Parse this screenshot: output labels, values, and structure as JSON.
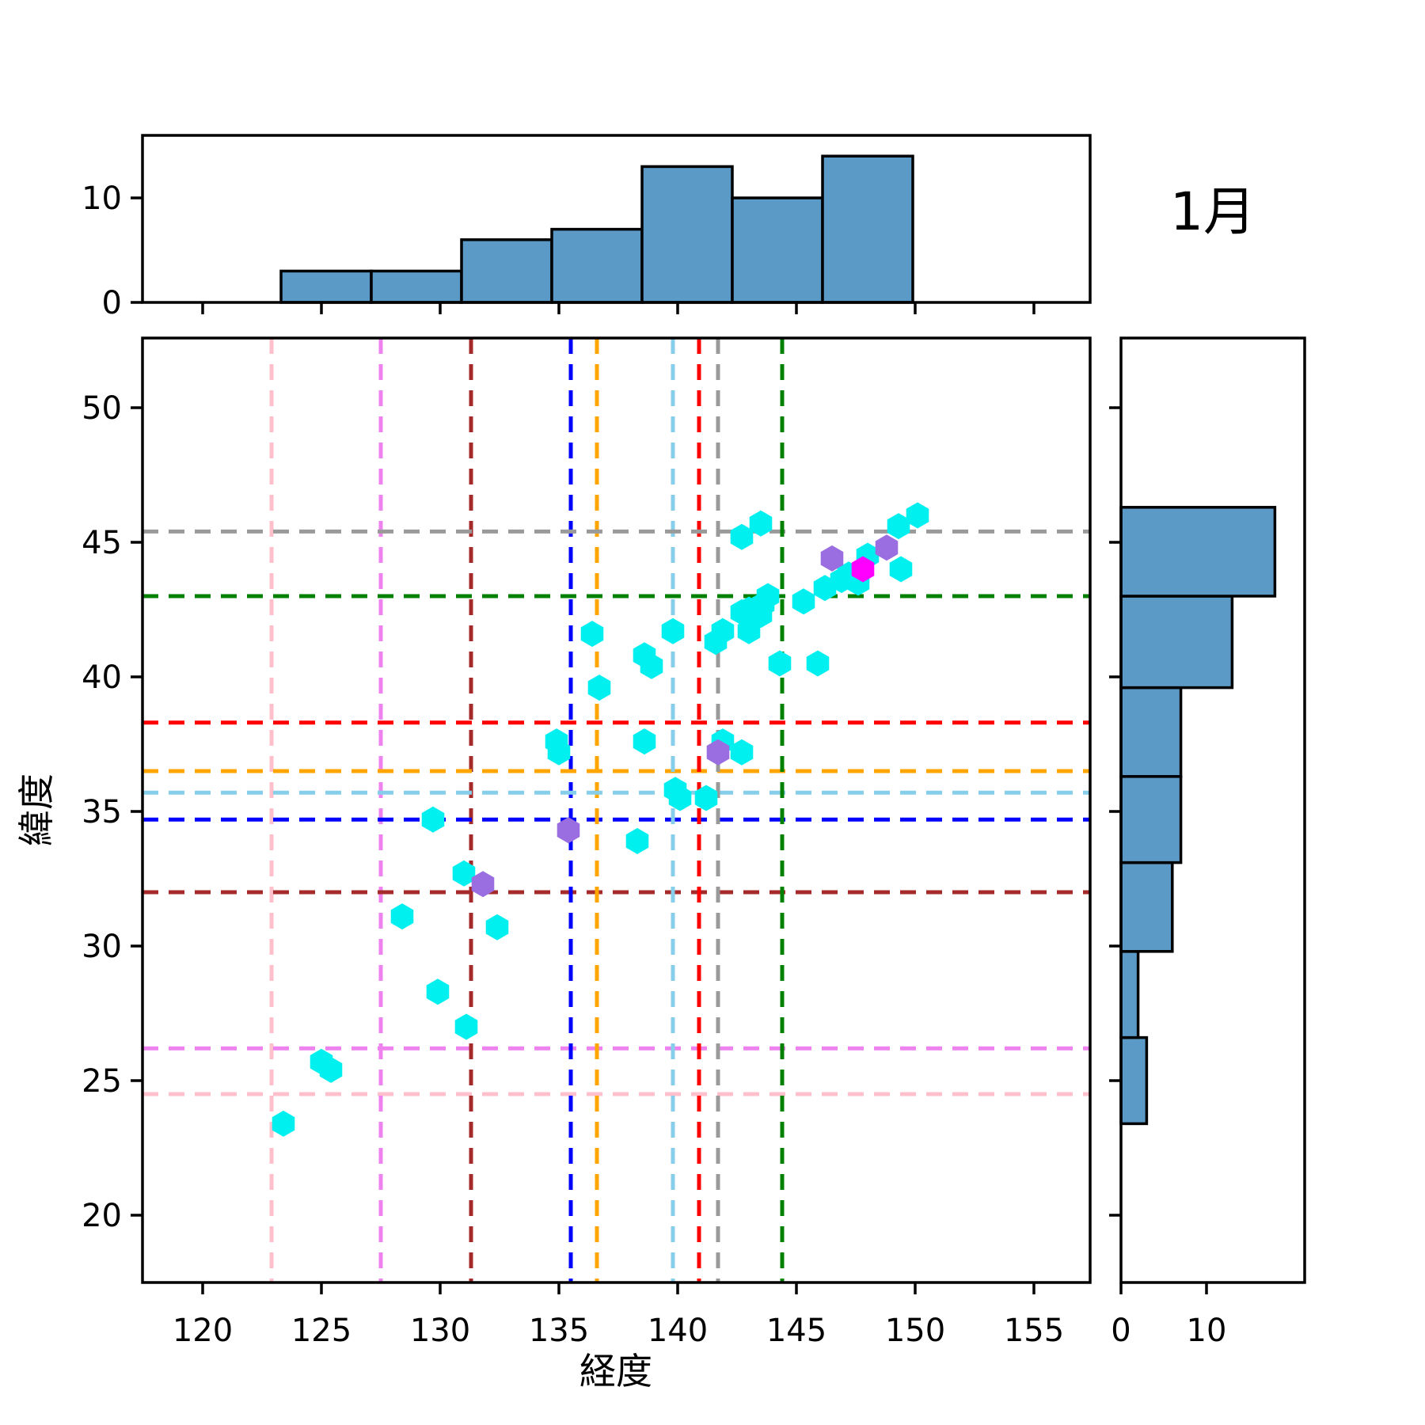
{
  "chart_data": {
    "type": "scatter",
    "title": "1月",
    "xlabel": "経度",
    "ylabel": "緯度",
    "xlim": [
      117.5,
      157.4
    ],
    "ylim": [
      17.5,
      52.6
    ],
    "grid": false,
    "xticks": [
      120,
      125,
      130,
      135,
      140,
      145,
      150,
      155
    ],
    "yticks": [
      20,
      25,
      30,
      35,
      40,
      45,
      50
    ],
    "marginal_count_ticks": [
      0,
      10
    ],
    "colors": {
      "histogram_fill": "#5b9ac7",
      "histogram_edge": "#000000",
      "cyan_points": "#00efef",
      "purple_points": "#9a6de1",
      "magenta_points": "#ff00ff"
    },
    "series": [
      {
        "name": "cyan-hexagons",
        "marker": "hexagon",
        "color": "#00efef",
        "points": [
          [
            123.4,
            23.4
          ],
          [
            125.0,
            25.7
          ],
          [
            125.4,
            25.4
          ],
          [
            128.4,
            31.1
          ],
          [
            129.7,
            34.7
          ],
          [
            129.9,
            28.3
          ],
          [
            131.0,
            32.7
          ],
          [
            131.1,
            27.0
          ],
          [
            132.4,
            30.7
          ],
          [
            134.9,
            37.6
          ],
          [
            135.0,
            37.2
          ],
          [
            136.4,
            41.6
          ],
          [
            136.7,
            39.6
          ],
          [
            138.3,
            33.9
          ],
          [
            138.6,
            40.8
          ],
          [
            138.6,
            37.6
          ],
          [
            138.9,
            40.4
          ],
          [
            139.8,
            41.7
          ],
          [
            139.9,
            35.8
          ],
          [
            140.1,
            35.5
          ],
          [
            141.2,
            35.5
          ],
          [
            141.6,
            41.3
          ],
          [
            141.9,
            37.6
          ],
          [
            141.9,
            41.7
          ],
          [
            142.7,
            37.2
          ],
          [
            142.7,
            42.4
          ],
          [
            142.7,
            45.2
          ],
          [
            143.0,
            41.7
          ],
          [
            143.0,
            42.5
          ],
          [
            143.5,
            42.3
          ],
          [
            143.5,
            45.7
          ],
          [
            143.6,
            42.7
          ],
          [
            143.8,
            43.0
          ],
          [
            144.3,
            40.5
          ],
          [
            145.3,
            42.8
          ],
          [
            145.9,
            40.5
          ],
          [
            146.2,
            43.3
          ],
          [
            146.9,
            43.6
          ],
          [
            147.2,
            43.8
          ],
          [
            147.6,
            43.5
          ],
          [
            148.0,
            44.5
          ],
          [
            149.3,
            45.6
          ],
          [
            149.4,
            44.0
          ],
          [
            150.1,
            46.0
          ]
        ]
      },
      {
        "name": "purple-hexagons",
        "marker": "hexagon",
        "color": "#9a6de1",
        "points": [
          [
            131.8,
            32.3
          ],
          [
            135.4,
            34.3
          ],
          [
            141.7,
            37.2
          ],
          [
            146.5,
            44.4
          ],
          [
            148.8,
            44.8
          ]
        ]
      },
      {
        "name": "magenta-hexagons",
        "marker": "hexagon",
        "color": "#ff00ff",
        "points": [
          [
            147.8,
            44.0
          ]
        ]
      }
    ],
    "crosshairs": [
      {
        "name": "pink",
        "color": "#ffc0cb",
        "lon": 122.9,
        "lat": 24.5
      },
      {
        "name": "violet",
        "color": "#ee82ee",
        "lon": 127.5,
        "lat": 26.2
      },
      {
        "name": "darkred",
        "color": "#a52a2a",
        "lon": 131.3,
        "lat": 32.0
      },
      {
        "name": "blue",
        "color": "#0000ff",
        "lon": 135.5,
        "lat": 34.7
      },
      {
        "name": "orange",
        "color": "#ffa500",
        "lon": 136.6,
        "lat": 36.5
      },
      {
        "name": "skyblue",
        "color": "#87ceeb",
        "lon": 139.8,
        "lat": 35.7
      },
      {
        "name": "red",
        "color": "#ff0000",
        "lon": 140.9,
        "lat": 38.3
      },
      {
        "name": "gray",
        "color": "#9a9a9a",
        "lon": 141.7,
        "lat": 45.4
      },
      {
        "name": "green",
        "color": "#008000",
        "lon": 144.4,
        "lat": 43.0
      }
    ],
    "top_histogram": {
      "axis": "longitude",
      "bin_edges": [
        123.3,
        127.1,
        130.9,
        134.7,
        138.5,
        142.3,
        146.1,
        149.9
      ],
      "counts": [
        3,
        3,
        6,
        7,
        13,
        10,
        14
      ],
      "value_ticks": [
        0,
        10
      ]
    },
    "right_histogram": {
      "axis": "latitude",
      "bin_edges": [
        23.4,
        26.6,
        29.8,
        33.1,
        36.3,
        39.6,
        43.0,
        46.3
      ],
      "counts": [
        3,
        2,
        6,
        7,
        7,
        13,
        18
      ],
      "value_ticks": [
        0,
        10
      ]
    }
  }
}
